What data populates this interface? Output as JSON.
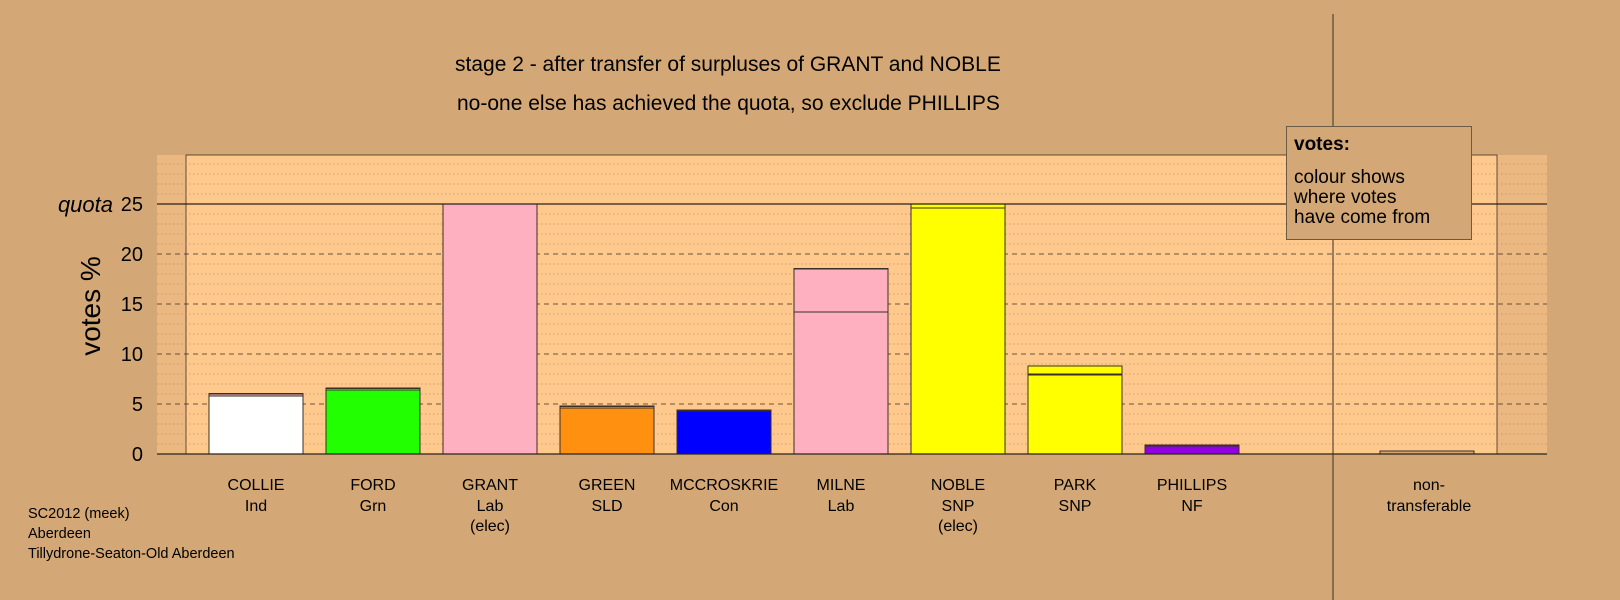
{
  "titles": {
    "line1": "stage 2 - after transfer of surpluses of GRANT and NOBLE",
    "line2": "no-one else has achieved the quota, so exclude PHILLIPS"
  },
  "footer": [
    "SC2012 (meek)",
    "Aberdeen",
    "Tillydrone-Seaton-Old Aberdeen"
  ],
  "legend": {
    "title": "votes:",
    "lines": [
      "colour shows",
      "where votes",
      "have come from"
    ]
  },
  "chart_data": {
    "type": "bar",
    "stacked": true,
    "ylabel": "votes %",
    "ylim": [
      0,
      30
    ],
    "yticks": [
      0,
      5,
      10,
      15,
      20,
      25
    ],
    "quota": {
      "label": "quota",
      "value": 25
    },
    "grid": true,
    "legend_position": "top-right",
    "categories": [
      {
        "name": "COLLIE",
        "party": "Ind",
        "note": ""
      },
      {
        "name": "FORD",
        "party": "Grn",
        "note": ""
      },
      {
        "name": "GRANT",
        "party": "Lab",
        "note": "(elec)"
      },
      {
        "name": "GREEN",
        "party": "SLD",
        "note": ""
      },
      {
        "name": "MCCROSKRIE",
        "party": "Con",
        "note": ""
      },
      {
        "name": "MILNE",
        "party": "Lab",
        "note": ""
      },
      {
        "name": "NOBLE",
        "party": "SNP",
        "note": "(elec)"
      },
      {
        "name": "PARK",
        "party": "SNP",
        "note": ""
      },
      {
        "name": "PHILLIPS",
        "party": "NF",
        "note": ""
      }
    ],
    "bars": [
      {
        "segments": [
          {
            "value": 5.8,
            "color": "#ffffff"
          },
          {
            "value": 0.2,
            "color": "#ffb0c0"
          },
          {
            "value": 0.05,
            "color": "#ffff00"
          }
        ]
      },
      {
        "segments": [
          {
            "value": 6.4,
            "color": "#22ff00"
          },
          {
            "value": 0.15,
            "color": "#ffb0c0"
          },
          {
            "value": 0.05,
            "color": "#ffff00"
          }
        ]
      },
      {
        "segments": [
          {
            "value": 25.0,
            "color": "#ffb0c0"
          }
        ]
      },
      {
        "segments": [
          {
            "value": 4.6,
            "color": "#ff9010"
          },
          {
            "value": 0.15,
            "color": "#ffb0c0"
          },
          {
            "value": 0.05,
            "color": "#ffff00"
          }
        ]
      },
      {
        "segments": [
          {
            "value": 4.3,
            "color": "#0000ff"
          },
          {
            "value": 0.05,
            "color": "#ffb0c0"
          },
          {
            "value": 0.05,
            "color": "#ffff00"
          }
        ]
      },
      {
        "segments": [
          {
            "value": 14.2,
            "color": "#ffb0c0"
          },
          {
            "value": 4.3,
            "color": "#ffb0c0"
          },
          {
            "value": 0.05,
            "color": "#ffff00"
          }
        ]
      },
      {
        "segments": [
          {
            "value": 24.6,
            "color": "#ffff00"
          },
          {
            "value": 0.4,
            "color": "#ffff00"
          }
        ]
      },
      {
        "segments": [
          {
            "value": 7.9,
            "color": "#ffff00"
          },
          {
            "value": 0.1,
            "color": "#ffb0c0"
          },
          {
            "value": 0.8,
            "color": "#ffff00"
          }
        ]
      },
      {
        "segments": [
          {
            "value": 0.8,
            "color": "#9000e0"
          },
          {
            "value": 0.1,
            "color": "#ffb0c0"
          }
        ]
      }
    ],
    "nontransferable": {
      "label_line1": "non-",
      "label_line2": "transferable",
      "value": 0.3,
      "color": "#d4a876"
    }
  }
}
